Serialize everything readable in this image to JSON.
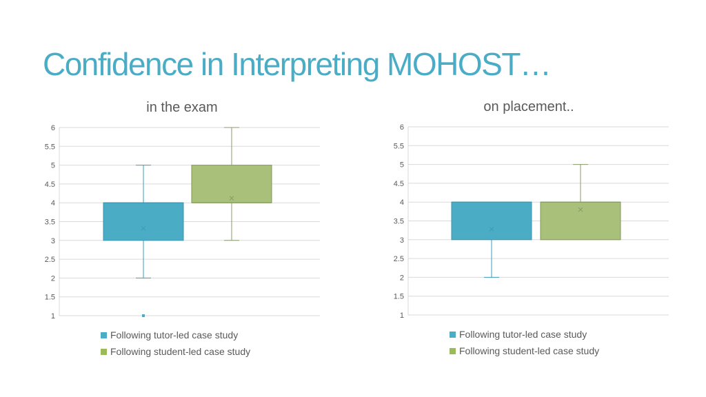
{
  "slide": {
    "title": "Confidence in Interpreting MOHOST…"
  },
  "colors": {
    "tutor_box": "#4bacc6",
    "tutor_line": "#3a9fb8",
    "student_box": "#9bbb59",
    "student_box_fill": "#a9c07a",
    "student_line": "#8a9b6a",
    "title": "#4bacc6",
    "grid": "#d9d9d9"
  },
  "chart_data": [
    {
      "type": "box",
      "title": "in the exam",
      "ylim": [
        1,
        6
      ],
      "yticks": [
        "1",
        "1.5",
        "2",
        "2.5",
        "3",
        "3.5",
        "4",
        "4.5",
        "5",
        "5.5",
        "6"
      ],
      "series": [
        {
          "name": "Following tutor-led case study",
          "min": 2,
          "q1": 3,
          "median": 4,
          "q3": 4,
          "max": 5,
          "mean": 3.32,
          "outliers": [
            1
          ]
        },
        {
          "name": "Following student-led case study",
          "min": 3,
          "q1": 4,
          "median": 4,
          "q3": 5,
          "max": 6,
          "mean": 4.12,
          "outliers": []
        }
      ],
      "legend": [
        "Following tutor-led case study",
        "Following student-led case study"
      ],
      "legend_position": "bottom"
    },
    {
      "type": "box",
      "title": "on placement..",
      "ylim": [
        1,
        6
      ],
      "yticks": [
        "1",
        "1.5",
        "2",
        "2.5",
        "3",
        "3.5",
        "4",
        "4.5",
        "5",
        "5.5",
        "6"
      ],
      "series": [
        {
          "name": "Following tutor-led case study",
          "min": 2,
          "q1": 3,
          "median": 4,
          "q3": 4,
          "max": 4,
          "mean": 3.28,
          "outliers": []
        },
        {
          "name": "Following student-led case study",
          "min": 3,
          "q1": 3,
          "median": 4,
          "q3": 4,
          "max": 5,
          "mean": 3.8,
          "outliers": []
        }
      ],
      "legend": [
        "Following tutor-led case study",
        "Following student-led case study"
      ],
      "legend_position": "bottom"
    }
  ]
}
